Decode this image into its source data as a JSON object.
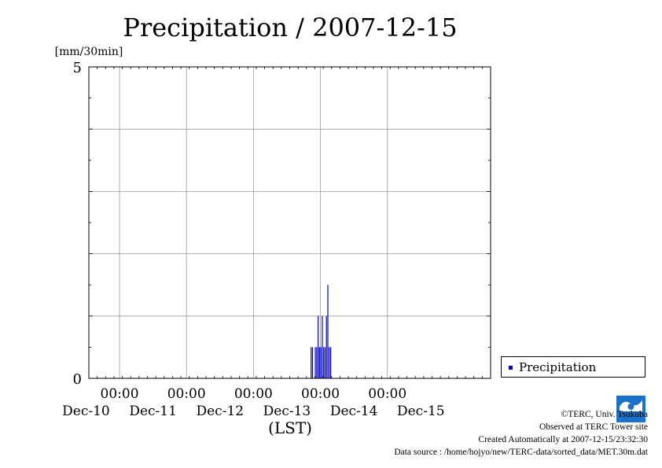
{
  "chart_data": {
    "type": "bar",
    "title": "Precipitation / 2007-12-15",
    "ylabel": "[mm/30min]",
    "xlabel": "(LST)",
    "ylim": [
      0,
      5
    ],
    "yticks": [
      "5",
      "0"
    ],
    "xlim": [
      "2007-12-09T13:00",
      "2007-12-15T13:00"
    ],
    "xticks": [
      {
        "time": "00:00",
        "date": "Dec-10"
      },
      {
        "time": "00:00",
        "date": "Dec-11"
      },
      {
        "time": "00:00",
        "date": "Dec-12"
      },
      {
        "time": "00:00",
        "date": "Dec-13"
      },
      {
        "time": "00:00",
        "date": "Dec-14"
      },
      {
        "time": "00:00",
        "date": "Dec-15"
      }
    ],
    "grid": true,
    "legend_position": "bottom-right outside",
    "series": [
      {
        "name": "Precipitation",
        "color": "#0000c8",
        "points": [
          {
            "t": "2007-12-12T20:30",
            "v": 0.5
          },
          {
            "t": "2007-12-12T21:00",
            "v": 0.5
          },
          {
            "t": "2007-12-12T22:00",
            "v": 0.5
          },
          {
            "t": "2007-12-12T22:30",
            "v": 0.5
          },
          {
            "t": "2007-12-12T23:00",
            "v": 1.0
          },
          {
            "t": "2007-12-12T23:30",
            "v": 0.5
          },
          {
            "t": "2007-12-13T00:00",
            "v": 0.5
          },
          {
            "t": "2007-12-13T00:30",
            "v": 1.0
          },
          {
            "t": "2007-12-13T01:00",
            "v": 0.5
          },
          {
            "t": "2007-12-13T01:30",
            "v": 0.5
          },
          {
            "t": "2007-12-13T02:00",
            "v": 1.0
          },
          {
            "t": "2007-12-13T02:30",
            "v": 1.5
          },
          {
            "t": "2007-12-13T03:00",
            "v": 0.5
          },
          {
            "t": "2007-12-13T03:30",
            "v": 0.5
          }
        ]
      }
    ]
  },
  "legend": {
    "label": "Precipitation"
  },
  "credits": {
    "copyright": "©TERC, Univ. Tsukuba",
    "observed": "Observed at TERC Tower site",
    "created": "Created Automatically at 2007-12-15/23:32:30",
    "source": "Data source : /home/hojyo/new/TERC-data/sorted_data/MET.30m.dat"
  },
  "logo": {
    "text": "TERC",
    "color": "#1a73c9"
  }
}
